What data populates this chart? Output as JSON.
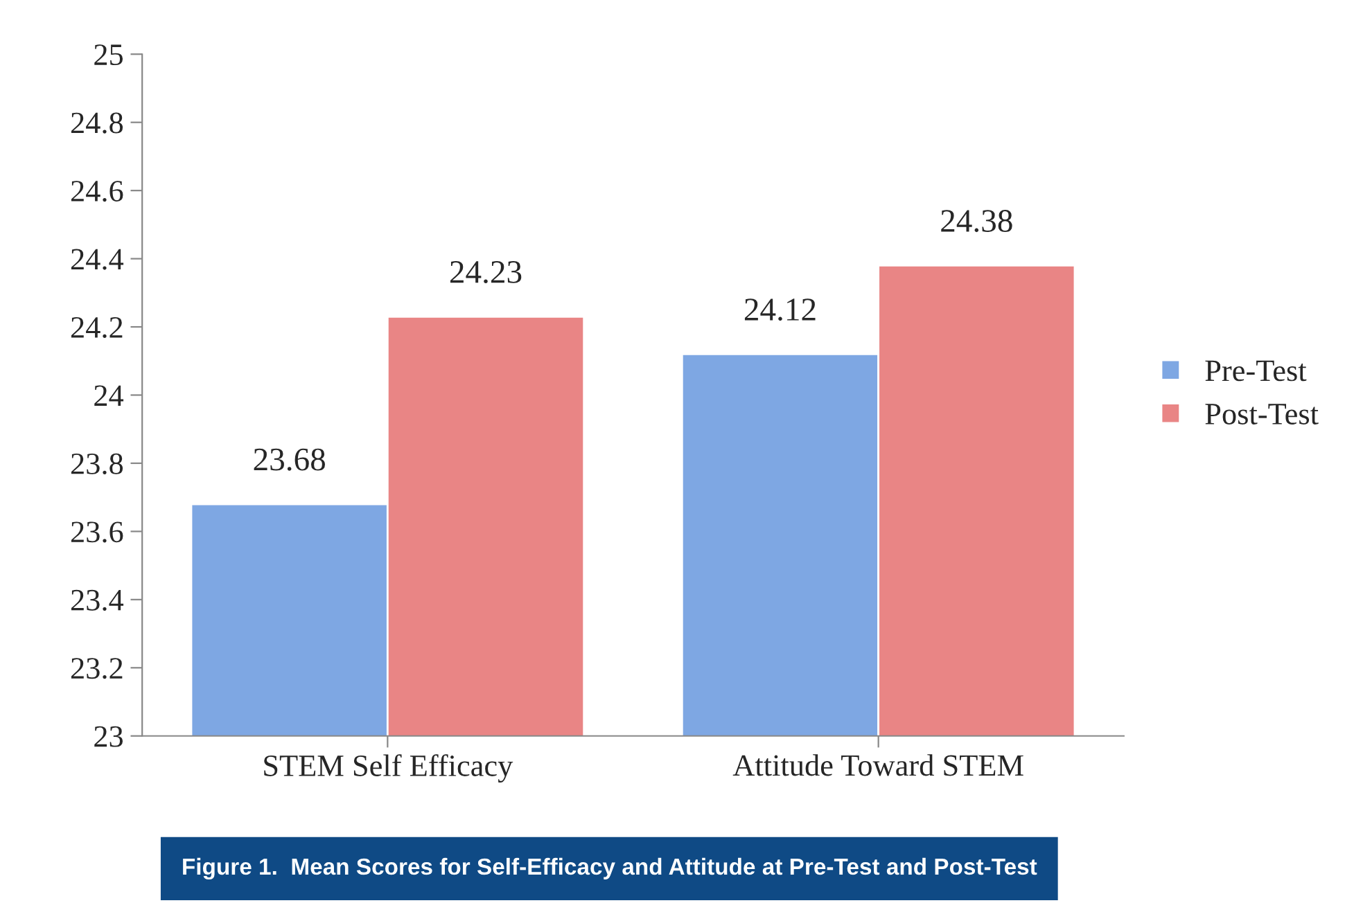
{
  "chart_data": {
    "type": "bar",
    "categories": [
      "STEM Self Efficacy",
      "Attitude Toward STEM"
    ],
    "series": [
      {
        "name": "Pre-Test",
        "color": "#7ea7e3",
        "values": [
          23.68,
          24.12
        ]
      },
      {
        "name": "Post-Test",
        "color": "#e98585",
        "values": [
          24.23,
          24.38
        ]
      }
    ],
    "ylim": [
      23,
      25
    ],
    "yticks": [
      23,
      23.2,
      23.4,
      23.6,
      23.8,
      24,
      24.2,
      24.4,
      24.6,
      24.8,
      25
    ],
    "data_labels": true,
    "legend": "right",
    "grid": false,
    "annotations": [
      "Figure 1.  Mean Scores for Self-Efficacy and Attitude at Pre-Test and Post-Test"
    ]
  }
}
